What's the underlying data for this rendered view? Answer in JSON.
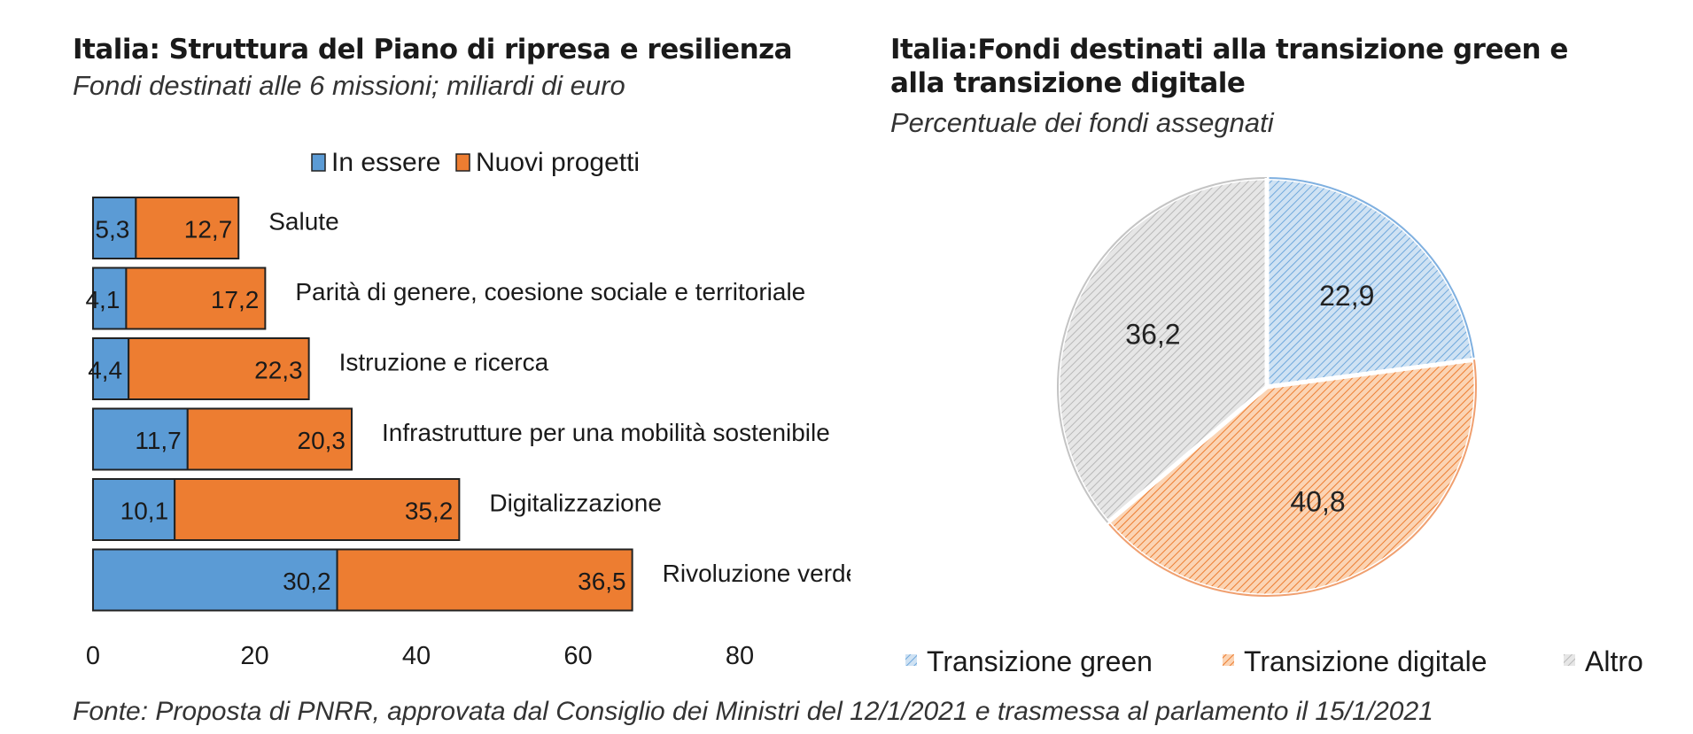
{
  "left_chart": {
    "title": "Italia: Struttura del Piano di ripresa e resilienza",
    "subtitle": "Fondi destinati alle 6 missioni; miliardi di euro"
  },
  "right_chart": {
    "title": "Italia:Fondi destinati alla transizione green e alla transizione digitale",
    "subtitle": "Percentuale dei fondi assegnati"
  },
  "footer": "Fonte: Proposta di PNRR, approvata dal Consiglio dei Ministri del 12/1/2021 e trasmessa al parlamento il 15/1/2021",
  "colors": {
    "in_essere": "#5b9bd5",
    "nuovi_progetti": "#ed7d31",
    "transizione_green": "#9dc3e6",
    "transizione_digitale": "#f4b183",
    "altro": "#d0d0d0"
  },
  "chart_data": [
    {
      "type": "bar",
      "orientation": "horizontal",
      "stacked": true,
      "categories": [
        "Salute",
        "Parità di genere, coesione sociale e territoriale",
        "Istruzione e ricerca",
        "Infrastrutture per una mobilità sostenibile",
        "Digitalizzazione",
        "Rivoluzione verde"
      ],
      "series": [
        {
          "name": "In essere",
          "values": [
            5.3,
            4.1,
            4.4,
            11.7,
            10.1,
            30.2
          ],
          "labels": [
            "5,3",
            "4,1",
            "4,4",
            "11,7",
            "10,1",
            "30,2"
          ]
        },
        {
          "name": "Nuovi progetti",
          "values": [
            12.7,
            17.2,
            22.3,
            20.3,
            35.2,
            36.5
          ],
          "labels": [
            "12,7",
            "17,2",
            "22,3",
            "20,3",
            "35,2",
            "36,5"
          ]
        }
      ],
      "xticks": [
        "0",
        "20",
        "40",
        "60",
        "80"
      ],
      "xlim": [
        0,
        80
      ],
      "legend": "top"
    },
    {
      "type": "pie",
      "categories": [
        "Transizione green",
        "Transizione digitale",
        "Altro"
      ],
      "values": [
        22.9,
        40.8,
        36.2
      ],
      "labels": [
        "22,9",
        "40,8",
        "36,2"
      ],
      "legend": "bottom"
    }
  ]
}
